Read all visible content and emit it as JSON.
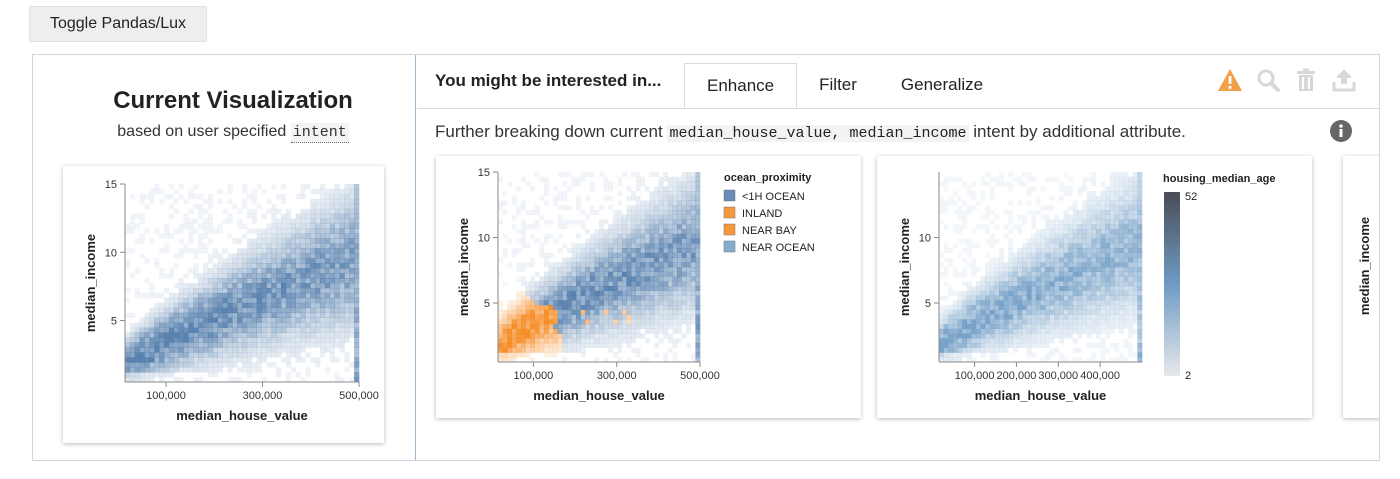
{
  "toggle_button": {
    "label": "Toggle Pandas/Lux"
  },
  "current_vis": {
    "title": "Current Visualization",
    "subtitle_prefix": "based on user specified",
    "subtitle_intent": "intent"
  },
  "recommendations": {
    "title": "You might be interested in...",
    "tabs": [
      {
        "label": "Enhance",
        "active": true
      },
      {
        "label": "Filter",
        "active": false
      },
      {
        "label": "Generalize",
        "active": false
      }
    ],
    "description": {
      "prefix": "Further breaking down current",
      "attributes": "median_house_value, median_income",
      "suffix": "intent by additional attribute."
    },
    "toolbar_icons": [
      "warning-icon",
      "search-icon",
      "trash-icon",
      "export-icon"
    ],
    "info_icon": "info-icon"
  },
  "colors": {
    "blue": "#4c78a8",
    "orange": "#f58518",
    "warning": "#f0a04b",
    "icon_grey": "#d8d8d8",
    "info": "#666666"
  },
  "chart_data": [
    {
      "id": "current",
      "type": "heatmap",
      "xlabel": "median_house_value",
      "ylabel": "median_income",
      "xticks": [
        "100,000",
        "300,000",
        "500,000"
      ],
      "yticks": [
        "5",
        "10",
        "15"
      ],
      "xlim": [
        15000,
        500001
      ],
      "ylim": [
        0.5,
        15
      ],
      "color": "#4c78a8"
    },
    {
      "id": "enhance-ocean",
      "type": "heatmap",
      "xlabel": "median_house_value",
      "ylabel": "median_income",
      "xticks": [
        "100,000",
        "300,000",
        "500,000"
      ],
      "yticks": [
        "5",
        "10",
        "15"
      ],
      "xlim": [
        15000,
        500001
      ],
      "ylim": [
        0.5,
        15
      ],
      "legend": {
        "title": "ocean_proximity",
        "placement": "right",
        "entries": [
          {
            "label": "<1H OCEAN",
            "color": "#4c78a8"
          },
          {
            "label": "INLAND",
            "color": "#f58518"
          },
          {
            "label": "NEAR BAY",
            "color": "#f58518"
          },
          {
            "label": "NEAR OCEAN",
            "color": "#6fa0c8"
          }
        ]
      }
    },
    {
      "id": "enhance-age",
      "type": "heatmap",
      "xlabel": "median_house_value",
      "ylabel": "median_income",
      "xticks": [
        "100,000",
        "200,000",
        "300,000",
        "400,000"
      ],
      "yticks": [
        "5",
        "10"
      ],
      "xlim": [
        15000,
        500001
      ],
      "ylim": [
        0.5,
        15
      ],
      "legend": {
        "title": "housing_median_age",
        "placement": "right",
        "min_label": "2",
        "max_label": "52"
      }
    },
    {
      "id": "partial",
      "type": "heatmap",
      "ylabel": "median_income"
    }
  ]
}
